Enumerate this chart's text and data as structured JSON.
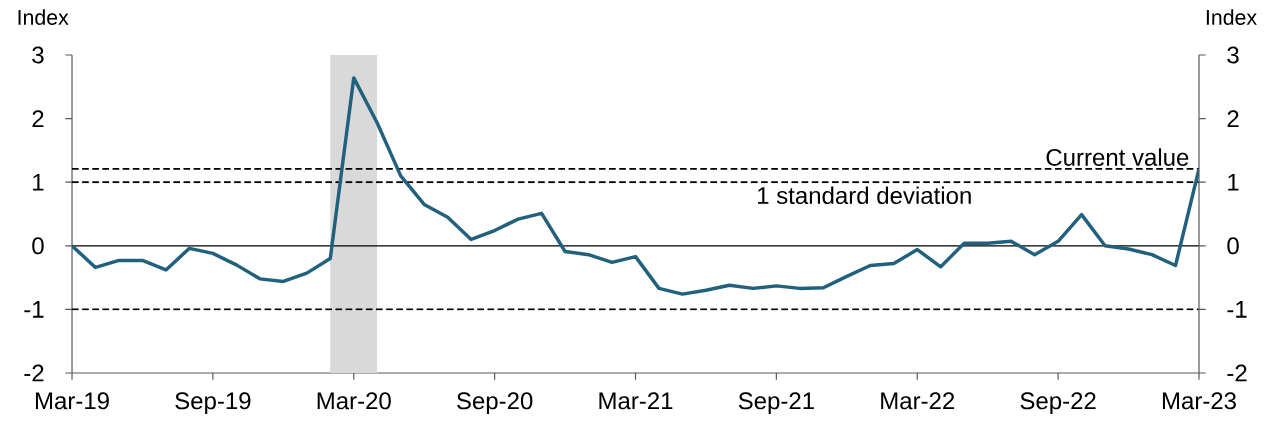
{
  "chart_data": {
    "type": "line",
    "ylabel": "Index",
    "y2label": "Index",
    "x": [
      "2019-03",
      "2019-04",
      "2019-05",
      "2019-06",
      "2019-07",
      "2019-08",
      "2019-09",
      "2019-10",
      "2019-11",
      "2019-12",
      "2020-01",
      "2020-02",
      "2020-03",
      "2020-04",
      "2020-05",
      "2020-06",
      "2020-07",
      "2020-08",
      "2020-09",
      "2020-10",
      "2020-11",
      "2020-12",
      "2021-01",
      "2021-02",
      "2021-03",
      "2021-04",
      "2021-05",
      "2021-06",
      "2021-07",
      "2021-08",
      "2021-09",
      "2021-10",
      "2021-11",
      "2021-12",
      "2022-01",
      "2022-02",
      "2022-03",
      "2022-04",
      "2022-05",
      "2022-06",
      "2022-07",
      "2022-08",
      "2022-09",
      "2022-10",
      "2022-11",
      "2022-12",
      "2023-01",
      "2023-02",
      "2023-03"
    ],
    "series": [
      {
        "color": "#22617e",
        "values": [
          0.0,
          -0.34,
          -0.23,
          -0.23,
          -0.38,
          -0.04,
          -0.12,
          -0.3,
          -0.52,
          -0.56,
          -0.43,
          -0.2,
          2.64,
          1.93,
          1.1,
          0.65,
          0.45,
          0.1,
          0.24,
          0.42,
          0.51,
          -0.09,
          -0.14,
          -0.26,
          -0.17,
          -0.67,
          -0.76,
          -0.7,
          -0.62,
          -0.67,
          -0.63,
          -0.67,
          -0.66,
          -0.48,
          -0.31,
          -0.28,
          -0.06,
          -0.33,
          0.04,
          0.04,
          0.07,
          -0.14,
          0.07,
          0.49,
          0.0,
          -0.05,
          -0.14,
          -0.31,
          1.21
        ]
      }
    ],
    "xlim": [
      "2019-03",
      "2023-03"
    ],
    "xticks": [
      {
        "value": "2019-03",
        "label": "Mar-19"
      },
      {
        "value": "2019-09",
        "label": "Sep-19"
      },
      {
        "value": "2020-03",
        "label": "Mar-20"
      },
      {
        "value": "2020-09",
        "label": "Sep-20"
      },
      {
        "value": "2021-03",
        "label": "Mar-21"
      },
      {
        "value": "2021-09",
        "label": "Sep-21"
      },
      {
        "value": "2022-03",
        "label": "Mar-22"
      },
      {
        "value": "2022-09",
        "label": "Sep-22"
      },
      {
        "value": "2023-03",
        "label": "Mar-23"
      }
    ],
    "ylim": [
      -2,
      3
    ],
    "yticks": [
      -2,
      -1,
      0,
      1,
      2,
      3
    ],
    "y2lim": [
      -2,
      3
    ],
    "y2ticks": [
      -2,
      -1,
      0,
      1,
      2,
      3
    ],
    "ref_lines": [
      {
        "axis": "y",
        "value": 0,
        "line_style": "solid",
        "color": "#000000"
      },
      {
        "axis": "y",
        "value": 1.21,
        "label": "Current value",
        "line_style": "dashed",
        "color": "#000000"
      },
      {
        "axis": "y",
        "value": 1,
        "label": "1 standard deviation",
        "line_style": "dashed",
        "color": "#000000"
      },
      {
        "axis": "y",
        "value": -1,
        "line_style": "dashed",
        "color": "#000000"
      }
    ],
    "bands": [
      {
        "axis": "x",
        "from": "2020-02",
        "to": "2020-04",
        "color": "#d9d9d9"
      }
    ],
    "marker": "none",
    "line_style": "solid"
  }
}
